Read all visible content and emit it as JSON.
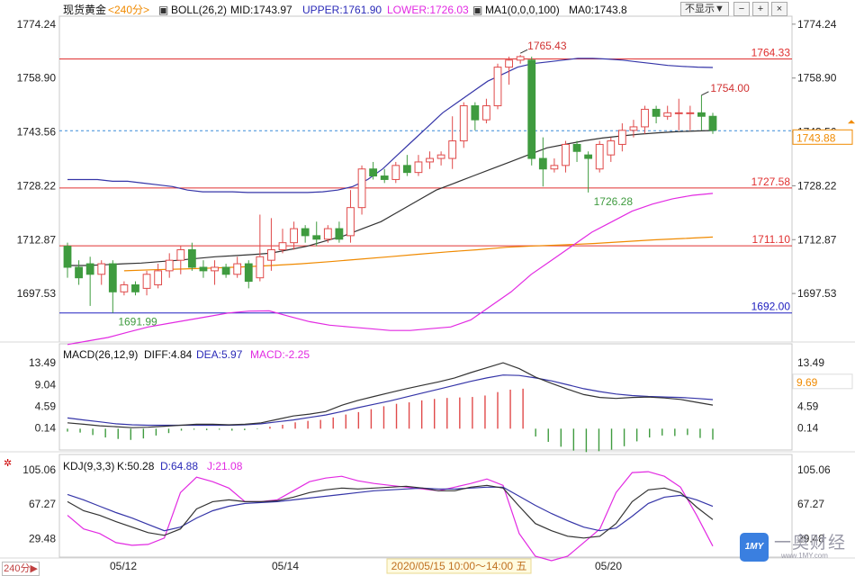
{
  "header": {
    "symbol": "现货黄金",
    "period": "<240分>",
    "boll": "BOLL(26,2)",
    "mid": "MID:1743.97",
    "upper": "UPPER:1761.90",
    "lower": "LOWER:1726.03",
    "ma": "MA1(0,0,0,100)",
    "ma0": "MA0:1743.8",
    "hide_label": "不显示▼"
  },
  "period_button": "240分▶",
  "colors": {
    "up": "#e04a4a",
    "down": "#3f9b3f",
    "boll_upper": "#3535a8",
    "boll_mid": "#333333",
    "boll_lower": "#e22ae2",
    "ma": "#f08a00",
    "dea": "#3535a8",
    "diff": "#333333",
    "j": "#e22ae2"
  },
  "price_axis": [
    "1774.24",
    "1758.90",
    "1743.56",
    "1728.22",
    "1712.87",
    "1697.53"
  ],
  "current_price": "1743.88",
  "price_annotations": {
    "high": "1765.43",
    "swing_high": "1754.00",
    "swing_low": "1726.28",
    "low": "1691.99"
  },
  "levels": [
    {
      "label": "1764.33",
      "color": "#e03030"
    },
    {
      "label": "1727.58",
      "color": "#e03030"
    },
    {
      "label": "1711.10",
      "color": "#e03030"
    },
    {
      "label": "1692.00",
      "color": "#2020c0"
    }
  ],
  "macd": {
    "title": "MACD(26,12,9)",
    "diff": "DIFF:4.84",
    "dea": "DEA:5.97",
    "macd": "MACD:-2.25",
    "axis": [
      "13.49",
      "9.04",
      "4.59",
      "0.14"
    ],
    "current": "9.69"
  },
  "kdj": {
    "title": "KDJ(9,3,3)",
    "k": "K:50.28",
    "d": "D:64.88",
    "j": "J:21.08",
    "axis": [
      "105.06",
      "67.27",
      "29.48"
    ]
  },
  "time_axis": {
    "d1": "05/12",
    "d2": "05/14",
    "cursor": "2020/05/15 10:00～14:00 五",
    "d3": "05/20"
  },
  "watermark": {
    "brand": "一奥财经",
    "site": "www.1MY.com",
    "logo": "1MY"
  },
  "chart_data": {
    "type": "candlestick",
    "price_range": [
      1685,
      1776
    ],
    "candles": [
      {
        "o": 1711,
        "c": 1705,
        "h": 1712,
        "l": 1702
      },
      {
        "o": 1705,
        "c": 1702,
        "h": 1707,
        "l": 1700
      },
      {
        "o": 1706,
        "c": 1703,
        "h": 1708,
        "l": 1694
      },
      {
        "o": 1703,
        "c": 1706,
        "h": 1707,
        "l": 1700
      },
      {
        "o": 1706,
        "c": 1698,
        "h": 1707,
        "l": 1692
      },
      {
        "o": 1698,
        "c": 1700,
        "h": 1701,
        "l": 1697
      },
      {
        "o": 1700,
        "c": 1698,
        "h": 1701,
        "l": 1697
      },
      {
        "o": 1699,
        "c": 1703,
        "h": 1704,
        "l": 1697
      },
      {
        "o": 1700,
        "c": 1704,
        "h": 1706,
        "l": 1699
      },
      {
        "o": 1704,
        "c": 1707,
        "h": 1709,
        "l": 1702
      },
      {
        "o": 1707,
        "c": 1710,
        "h": 1711,
        "l": 1703
      },
      {
        "o": 1710,
        "c": 1705,
        "h": 1712,
        "l": 1704
      },
      {
        "o": 1705,
        "c": 1704,
        "h": 1707,
        "l": 1702
      },
      {
        "o": 1704,
        "c": 1705,
        "h": 1707,
        "l": 1700
      },
      {
        "o": 1705,
        "c": 1703,
        "h": 1706,
        "l": 1702
      },
      {
        "o": 1703,
        "c": 1706,
        "h": 1708,
        "l": 1702
      },
      {
        "o": 1706,
        "c": 1701,
        "h": 1707,
        "l": 1699
      },
      {
        "o": 1702,
        "c": 1708,
        "h": 1720,
        "l": 1701
      },
      {
        "o": 1707,
        "c": 1710,
        "h": 1719,
        "l": 1704
      },
      {
        "o": 1710,
        "c": 1712,
        "h": 1716,
        "l": 1709
      },
      {
        "o": 1712,
        "c": 1716,
        "h": 1718,
        "l": 1710
      },
      {
        "o": 1716,
        "c": 1714,
        "h": 1717,
        "l": 1712
      },
      {
        "o": 1714,
        "c": 1713,
        "h": 1718,
        "l": 1711
      },
      {
        "o": 1713,
        "c": 1716,
        "h": 1717,
        "l": 1712
      },
      {
        "o": 1716,
        "c": 1713,
        "h": 1718,
        "l": 1712
      },
      {
        "o": 1714,
        "c": 1722,
        "h": 1727,
        "l": 1712
      },
      {
        "o": 1722,
        "c": 1733,
        "h": 1734,
        "l": 1720
      },
      {
        "o": 1733,
        "c": 1731,
        "h": 1735,
        "l": 1730
      },
      {
        "o": 1731,
        "c": 1730,
        "h": 1733,
        "l": 1729
      },
      {
        "o": 1730,
        "c": 1734,
        "h": 1735,
        "l": 1729
      },
      {
        "o": 1734,
        "c": 1732,
        "h": 1737,
        "l": 1731
      },
      {
        "o": 1732,
        "c": 1735,
        "h": 1737,
        "l": 1731
      },
      {
        "o": 1735,
        "c": 1736,
        "h": 1738,
        "l": 1733
      },
      {
        "o": 1736,
        "c": 1737,
        "h": 1738,
        "l": 1734
      },
      {
        "o": 1736,
        "c": 1741,
        "h": 1748,
        "l": 1733
      },
      {
        "o": 1741,
        "c": 1751,
        "h": 1752,
        "l": 1739
      },
      {
        "o": 1751,
        "c": 1747,
        "h": 1752,
        "l": 1744
      },
      {
        "o": 1747,
        "c": 1751,
        "h": 1753,
        "l": 1746
      },
      {
        "o": 1751,
        "c": 1762,
        "h": 1763,
        "l": 1750
      },
      {
        "o": 1762,
        "c": 1764,
        "h": 1765,
        "l": 1757
      },
      {
        "o": 1764,
        "c": 1765,
        "h": 1765.5,
        "l": 1763
      },
      {
        "o": 1764,
        "c": 1736,
        "h": 1765,
        "l": 1734
      },
      {
        "o": 1736,
        "c": 1733,
        "h": 1742,
        "l": 1728
      },
      {
        "o": 1733,
        "c": 1734,
        "h": 1736,
        "l": 1732
      },
      {
        "o": 1734,
        "c": 1740,
        "h": 1741,
        "l": 1732
      },
      {
        "o": 1740,
        "c": 1738,
        "h": 1741,
        "l": 1735
      },
      {
        "o": 1737,
        "c": 1736,
        "h": 1738,
        "l": 1726.3
      },
      {
        "o": 1733,
        "c": 1740,
        "h": 1741,
        "l": 1732
      },
      {
        "o": 1737,
        "c": 1741,
        "h": 1742,
        "l": 1735
      },
      {
        "o": 1740,
        "c": 1744,
        "h": 1746,
        "l": 1738
      },
      {
        "o": 1744,
        "c": 1745,
        "h": 1747,
        "l": 1742
      },
      {
        "o": 1745,
        "c": 1750,
        "h": 1751,
        "l": 1743
      },
      {
        "o": 1750,
        "c": 1748,
        "h": 1751,
        "l": 1746
      },
      {
        "o": 1748,
        "c": 1749,
        "h": 1751,
        "l": 1747
      },
      {
        "o": 1749,
        "c": 1749,
        "h": 1753,
        "l": 1744
      },
      {
        "o": 1749,
        "c": 1749,
        "h": 1751,
        "l": 1744
      },
      {
        "o": 1749,
        "c": 1748,
        "h": 1754,
        "l": 1744
      },
      {
        "o": 1748,
        "c": 1744,
        "h": 1749,
        "l": 1743
      }
    ],
    "boll_upper": [
      1730,
      1730,
      1730,
      1729.5,
      1729.5,
      1729,
      1728.5,
      1728,
      1727,
      1726.5,
      1726.5,
      1726.5,
      1726.3,
      1726.3,
      1726.3,
      1726.3,
      1726.3,
      1726.5,
      1727,
      1728,
      1730,
      1733,
      1737,
      1741,
      1745,
      1749,
      1752,
      1755,
      1758,
      1760,
      1762,
      1763,
      1763.5,
      1764,
      1764.5,
      1764.5,
      1764.3,
      1764,
      1763.5,
      1763,
      1762.5,
      1762.2,
      1762,
      1761.9
    ],
    "boll_mid": [
      1705.5,
      1705.5,
      1705.7,
      1706,
      1706.2,
      1706.6,
      1707,
      1707.5,
      1708,
      1708.3,
      1708.6,
      1709,
      1710,
      1711,
      1712.5,
      1714,
      1716,
      1718,
      1721,
      1724,
      1727,
      1729,
      1731,
      1733,
      1735,
      1737,
      1739,
      1740,
      1741,
      1741.8,
      1742.4,
      1742.9,
      1743.3,
      1743.6,
      1743.8,
      1743.97
    ],
    "boll_lower": [
      1683,
      1684,
      1685,
      1686.5,
      1688,
      1689,
      1690,
      1691,
      1692,
      1692.5,
      1692.6,
      1691,
      1689.5,
      1688.5,
      1688,
      1687.5,
      1687,
      1687,
      1687.5,
      1688,
      1690,
      1694,
      1698,
      1703,
      1707,
      1711,
      1715,
      1718,
      1721,
      1723,
      1724.5,
      1725.5,
      1726.03
    ],
    "ma": [
      1704,
      1704.3,
      1704.5,
      1704.8,
      1705.1,
      1705.5,
      1706,
      1706.6,
      1707.3,
      1708,
      1708.7,
      1709.4,
      1710,
      1710.7,
      1711.1,
      1711.4,
      1711.8,
      1712.3,
      1712.8,
      1713.2,
      1713.6
    ],
    "macd": {
      "diff": [
        1.2,
        0.9,
        0.6,
        0.4,
        0.2,
        0.3,
        0.5,
        0.7,
        0.9,
        0.9,
        0.8,
        0.9,
        1.2,
        1.9,
        2.6,
        3.0,
        3.5,
        4.8,
        5.8,
        6.6,
        7.4,
        8.2,
        8.9,
        9.6,
        10.4,
        11.5,
        12.5,
        13.5,
        12.3,
        10.6,
        9.3,
        8.1,
        7.0,
        6.4,
        6.2,
        6.4,
        6.5,
        6.3,
        6.0,
        5.4,
        4.84
      ],
      "dea": [
        2.2,
        1.8,
        1.4,
        1.0,
        0.8,
        0.7,
        0.7,
        0.7,
        0.7,
        0.7,
        0.7,
        0.8,
        1.0,
        1.4,
        1.8,
        2.3,
        2.8,
        3.5,
        4.3,
        5.0,
        5.7,
        6.5,
        7.3,
        8.1,
        8.9,
        9.7,
        10.4,
        11.0,
        10.9,
        10.4,
        9.8,
        9.0,
        8.2,
        7.6,
        7.1,
        6.8,
        6.6,
        6.5,
        6.4,
        6.2,
        5.97
      ],
      "bars": [
        -0.6,
        -0.8,
        -1.3,
        -1.8,
        -2.1,
        -2.3,
        -2.0,
        -1.4,
        -0.9,
        -0.4,
        -0.2,
        -0.3,
        -0.2,
        -0.4,
        -0.3,
        -0.1,
        0.4,
        0.8,
        1.3,
        1.6,
        1.8,
        2.3,
        2.9,
        3.4,
        4.0,
        4.6,
        5.1,
        5.4,
        5.8,
        6.1,
        6.3,
        6.4,
        6.5,
        6.8,
        7.5,
        8.0,
        8.2,
        -1.6,
        -2.7,
        -3.7,
        -4.5,
        -4.8,
        -4.6,
        -4.3,
        -3.6,
        -2.6,
        -1.8,
        -1.4,
        -1.5,
        -1.3,
        -1.9,
        -2.25
      ],
      "range": [
        -4,
        15
      ]
    },
    "kdj": {
      "k": [
        70,
        60,
        55,
        48,
        42,
        36,
        33,
        40,
        62,
        70,
        72,
        70,
        70,
        71,
        75,
        80,
        83,
        85,
        84,
        85,
        86,
        87,
        85,
        82,
        82,
        86,
        88,
        85,
        65,
        46,
        38,
        32,
        30,
        32,
        46,
        70,
        83,
        85,
        80,
        64,
        50.28
      ],
      "d": [
        78,
        72,
        65,
        58,
        52,
        45,
        38,
        42,
        52,
        60,
        65,
        68,
        69,
        70,
        72,
        74,
        76,
        78,
        80,
        82,
        83,
        84,
        85,
        84,
        84,
        85,
        86,
        86,
        76,
        66,
        57,
        49,
        42,
        38,
        41,
        54,
        68,
        75,
        77,
        72,
        64.88
      ],
      "j": [
        55,
        40,
        35,
        25,
        22,
        23,
        30,
        80,
        97,
        92,
        85,
        70,
        70,
        72,
        82,
        92,
        96,
        98,
        93,
        90,
        88,
        86,
        84,
        82,
        86,
        90,
        95,
        88,
        35,
        10,
        5,
        10,
        25,
        40,
        80,
        102,
        103,
        98,
        86,
        55,
        21.08
      ],
      "range": [
        10,
        115
      ]
    }
  }
}
